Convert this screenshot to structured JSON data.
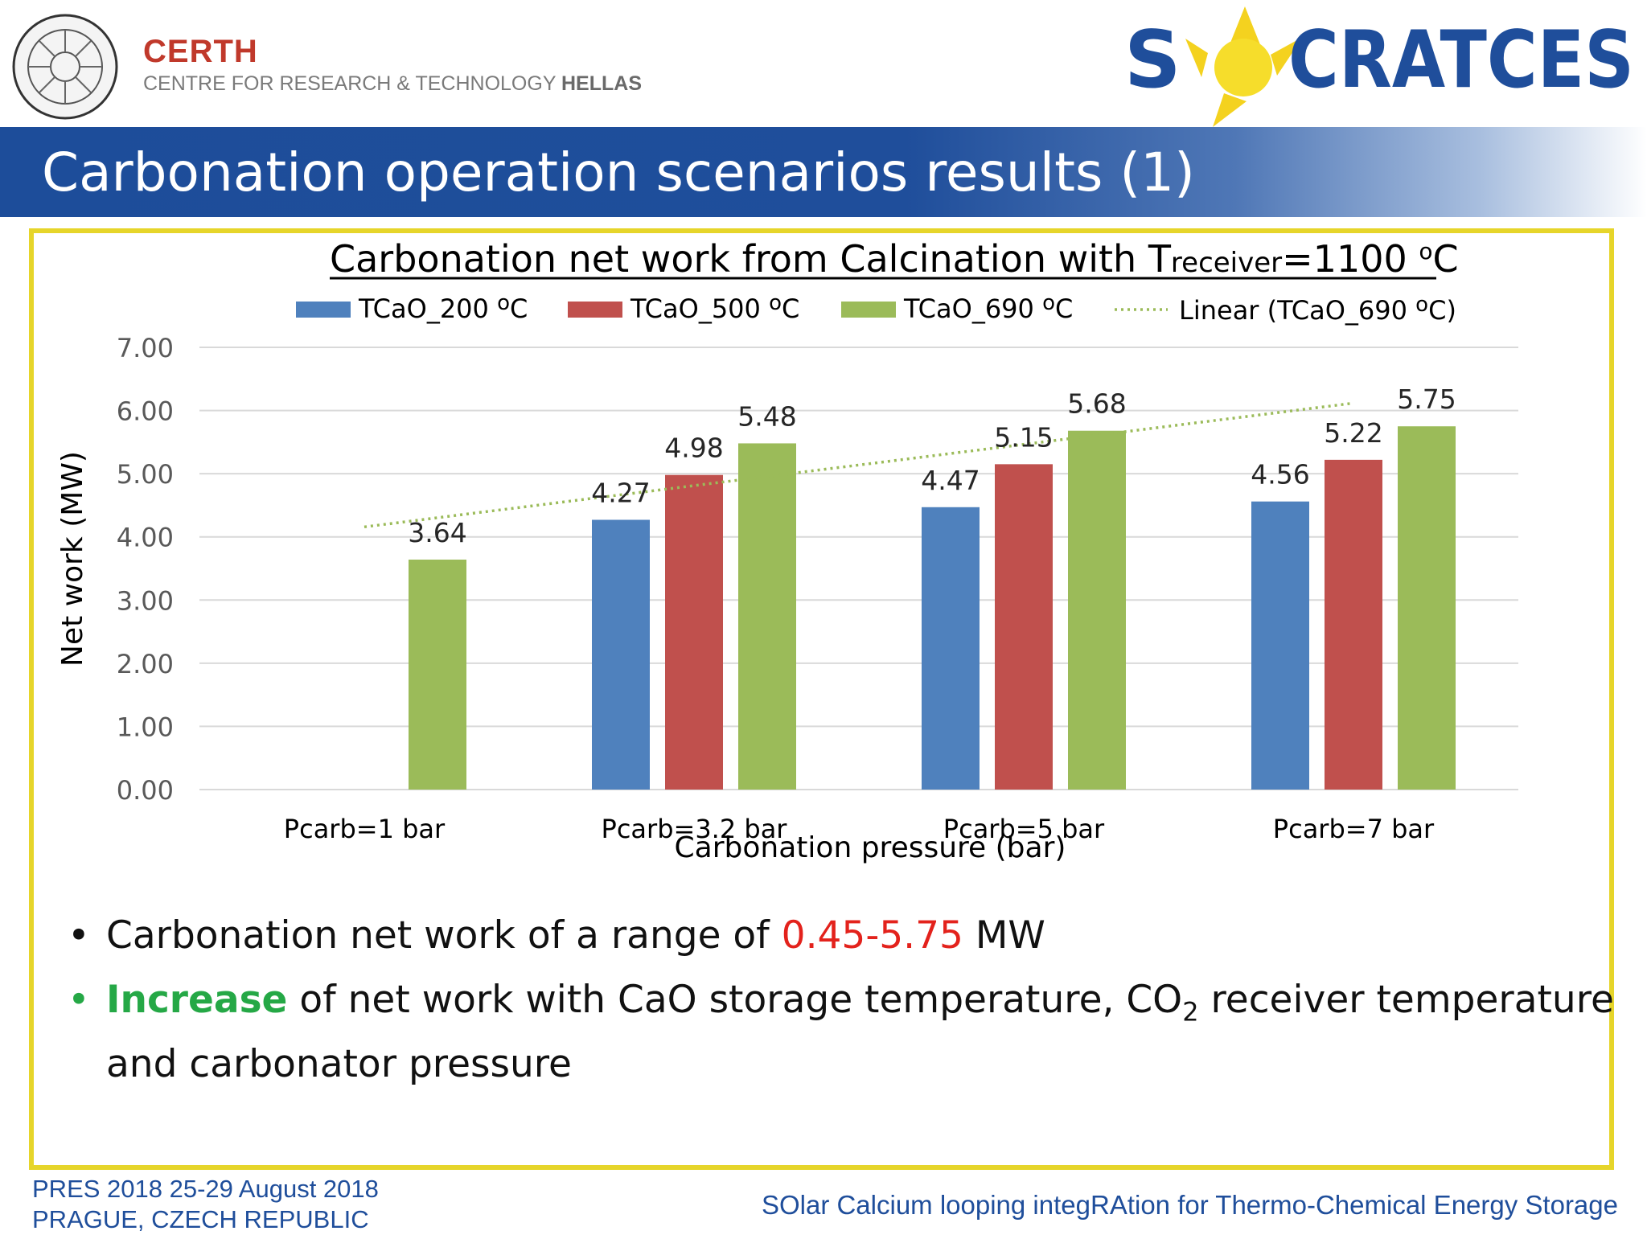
{
  "header": {
    "org_name": "CERTH",
    "org_subtitle_light": "CENTRE FOR RESEARCH & TECHNOLOGY ",
    "org_subtitle_bold": "HELLAS",
    "project_logo_text": "SOCRATCES",
    "slide_title": "Carbonation operation scenarios results (1)"
  },
  "chart_data": {
    "type": "bar",
    "title_main": "Carbonation net work from Calcination with T",
    "title_sub": "receiver",
    "title_tail": "=1100 ",
    "title_unit_sup": "o",
    "title_unit": "C",
    "categories": [
      "Pcarb=1 bar",
      "Pcarb=3.2 bar",
      "Pcarb=5 bar",
      "Pcarb=7 bar"
    ],
    "series": [
      {
        "name": "TCaO_200",
        "unit_sup": "o",
        "unit": "C",
        "color": "#4f81bd",
        "values": [
          null,
          4.27,
          4.47,
          4.56
        ]
      },
      {
        "name": "TCaO_500",
        "unit_sup": "o",
        "unit": "C",
        "color": "#c0504d",
        "values": [
          null,
          4.98,
          5.15,
          5.22
        ]
      },
      {
        "name": "TCaO_690",
        "unit_sup": "o",
        "unit": "C",
        "color": "#9bbb59",
        "values": [
          3.64,
          5.48,
          5.68,
          5.75
        ]
      }
    ],
    "value_labels": [
      [
        null,
        "4.27",
        "4.47",
        "4.56"
      ],
      [
        null,
        "4.98",
        "5.15",
        "5.22"
      ],
      [
        "3.64",
        "5.48",
        "5.68",
        "5.75"
      ]
    ],
    "trendline": {
      "name": "Linear (TCaO_690 ",
      "unit_sup": "o",
      "unit_tail": "C)",
      "series": "TCaO_690",
      "color": "#9bbb59",
      "style": "dotted"
    },
    "xlabel": "Carbonation pressure (bar)",
    "ylabel": "Net work (MW)",
    "ylim": [
      0,
      7
    ],
    "yticks": [
      "0.00",
      "1.00",
      "2.00",
      "3.00",
      "4.00",
      "5.00",
      "6.00",
      "7.00"
    ],
    "grid": true,
    "legend_position": "top"
  },
  "bullets": {
    "b1_text": "Carbonation net work of a range of ",
    "b1_highlight": "0.45-5.75",
    "b1_tail": " MW",
    "b2_highlight": "Increase",
    "b2_text": " of net work with CaO storage temperature, CO",
    "b2_sub": "2",
    "b2_tail": " receiver temperature",
    "b2_line2": "and carbonator pressure",
    "bullet_glyph": "•"
  },
  "footer": {
    "conference_line1": "PRES 2018 25-29 August 2018",
    "conference_line2": "PRAGUE, CZECH REPUBLIC",
    "project_tagline": "SOlar Calcium looping integRAtion for Thermo-Chemical Energy Storage"
  }
}
